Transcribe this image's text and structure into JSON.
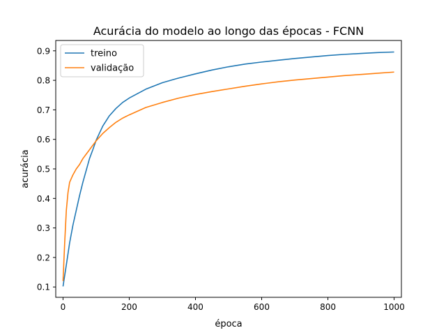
{
  "chart_data": {
    "type": "line",
    "title": "Acurácia do modelo ao longo das épocas - FCNN",
    "xlabel": "época",
    "ylabel": "acurácia",
    "xlim": [
      -22,
      1022
    ],
    "ylim": [
      0.065,
      0.935
    ],
    "xticks": [
      0,
      200,
      400,
      600,
      800,
      1000
    ],
    "yticks": [
      0.1,
      0.2,
      0.3,
      0.4,
      0.5,
      0.6,
      0.7,
      0.8,
      0.9
    ],
    "grid": false,
    "legend_position": "top-left",
    "series": [
      {
        "name": "treino",
        "color": "#1f77b4",
        "points": [
          [
            0,
            0.102
          ],
          [
            10,
            0.175
          ],
          [
            20,
            0.25
          ],
          [
            30,
            0.31
          ],
          [
            40,
            0.36
          ],
          [
            50,
            0.41
          ],
          [
            60,
            0.455
          ],
          [
            70,
            0.495
          ],
          [
            80,
            0.535
          ],
          [
            90,
            0.565
          ],
          [
            100,
            0.597
          ],
          [
            120,
            0.645
          ],
          [
            140,
            0.68
          ],
          [
            160,
            0.705
          ],
          [
            180,
            0.725
          ],
          [
            200,
            0.74
          ],
          [
            250,
            0.77
          ],
          [
            300,
            0.792
          ],
          [
            350,
            0.808
          ],
          [
            400,
            0.822
          ],
          [
            450,
            0.835
          ],
          [
            500,
            0.846
          ],
          [
            550,
            0.855
          ],
          [
            600,
            0.862
          ],
          [
            650,
            0.868
          ],
          [
            700,
            0.874
          ],
          [
            750,
            0.879
          ],
          [
            800,
            0.884
          ],
          [
            850,
            0.888
          ],
          [
            900,
            0.891
          ],
          [
            950,
            0.894
          ],
          [
            1000,
            0.896
          ]
        ]
      },
      {
        "name": "validação",
        "color": "#ff7f0e",
        "points": [
          [
            0,
            0.12
          ],
          [
            5,
            0.25
          ],
          [
            10,
            0.36
          ],
          [
            15,
            0.42
          ],
          [
            20,
            0.455
          ],
          [
            30,
            0.48
          ],
          [
            40,
            0.5
          ],
          [
            50,
            0.515
          ],
          [
            60,
            0.535
          ],
          [
            70,
            0.55
          ],
          [
            80,
            0.565
          ],
          [
            90,
            0.58
          ],
          [
            100,
            0.595
          ],
          [
            120,
            0.62
          ],
          [
            140,
            0.64
          ],
          [
            160,
            0.658
          ],
          [
            180,
            0.672
          ],
          [
            200,
            0.683
          ],
          [
            250,
            0.708
          ],
          [
            300,
            0.725
          ],
          [
            350,
            0.74
          ],
          [
            400,
            0.752
          ],
          [
            450,
            0.762
          ],
          [
            500,
            0.771
          ],
          [
            550,
            0.78
          ],
          [
            600,
            0.788
          ],
          [
            650,
            0.795
          ],
          [
            700,
            0.801
          ],
          [
            750,
            0.806
          ],
          [
            800,
            0.811
          ],
          [
            850,
            0.816
          ],
          [
            900,
            0.82
          ],
          [
            950,
            0.824
          ],
          [
            1000,
            0.828
          ]
        ]
      }
    ]
  }
}
